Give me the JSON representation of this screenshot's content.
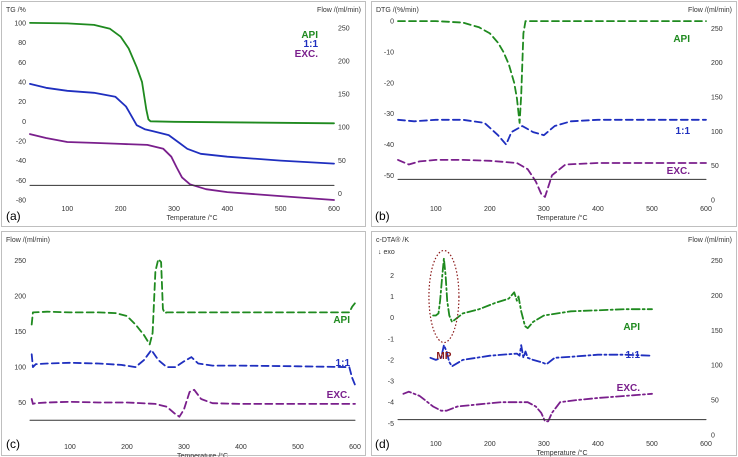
{
  "colors": {
    "api": "#1f8a1f",
    "mix": "#1f2fbf",
    "exc": "#7a1f8c",
    "base": "#333333",
    "annotation": "#8b1a1a",
    "frame": "#bfbfbf"
  },
  "chart_data": [
    {
      "panel": "(a)",
      "type": "line",
      "ylabel": "TG /%",
      "y2label": "Flow /(ml/min)",
      "xlabel": "Temperature /°C",
      "xlim": [
        30,
        600
      ],
      "ylim": [
        -80,
        105
      ],
      "y2lim": [
        -10,
        265
      ],
      "xticks": [
        100,
        200,
        300,
        400,
        500,
        600
      ],
      "yticks": [
        100,
        80,
        60,
        40,
        20,
        0,
        -20,
        -40,
        -60,
        -80
      ],
      "y2ticks": [
        250,
        200,
        150,
        100,
        50,
        0
      ],
      "legend": [
        "API",
        "1:1",
        "EXC."
      ],
      "series": [
        {
          "name": "API",
          "style": "solid",
          "x": [
            30,
            100,
            150,
            180,
            200,
            215,
            230,
            240,
            248,
            252,
            256,
            300,
            400,
            600
          ],
          "y": [
            100,
            99.5,
            98,
            94,
            86,
            74,
            55,
            40,
            12,
            2,
            0,
            -0.5,
            -1,
            -2
          ]
        },
        {
          "name": "1:1",
          "style": "solid",
          "x": [
            30,
            60,
            100,
            150,
            190,
            210,
            230,
            245,
            260,
            290,
            310,
            325,
            350,
            400,
            500,
            600
          ],
          "y": [
            38,
            34,
            31,
            29,
            25,
            15,
            -4,
            -8,
            -10,
            -14,
            -22,
            -28,
            -33,
            -36,
            -40,
            -43
          ]
        },
        {
          "name": "EXC.",
          "style": "solid",
          "x": [
            30,
            60,
            100,
            150,
            200,
            250,
            280,
            295,
            305,
            315,
            330,
            360,
            400,
            500,
            600
          ],
          "y": [
            -13,
            -17,
            -21,
            -22,
            -23,
            -24,
            -28,
            -36,
            -47,
            -57,
            -64,
            -69,
            -72,
            -76,
            -80
          ]
        },
        {
          "name": "",
          "style": "baseline",
          "axis": "y2",
          "x": [
            30,
            600
          ],
          "y": [
            12,
            12
          ]
        }
      ]
    },
    {
      "panel": "(b)",
      "type": "line",
      "ylabel": "DTG /(%/min)",
      "y2label": "Flow /(ml/min)",
      "xlabel": "Temperature /°C",
      "xlim": [
        30,
        600
      ],
      "ylim": [
        -58,
        1
      ],
      "y2lim": [
        0,
        265
      ],
      "xticks": [
        100,
        200,
        300,
        400,
        500,
        600
      ],
      "yticks": [
        0,
        -10,
        -20,
        -30,
        -40,
        -50
      ],
      "y2ticks": [
        250,
        200,
        150,
        100,
        50,
        0
      ],
      "legend": [
        "API",
        "1:1",
        "EXC."
      ],
      "series": [
        {
          "name": "API",
          "style": "dashed",
          "x": [
            30,
            100,
            150,
            180,
            200,
            215,
            225,
            235,
            240,
            245,
            250,
            255,
            258,
            262,
            266,
            300,
            400,
            600
          ],
          "y": [
            0,
            0,
            -0.5,
            -2,
            -4,
            -7,
            -10,
            -14,
            -17,
            -20,
            -25,
            -33,
            -24,
            -4,
            0,
            0,
            0,
            0
          ]
        },
        {
          "name": "1:1",
          "style": "dashed",
          "x": [
            30,
            60,
            100,
            150,
            190,
            215,
            230,
            240,
            260,
            280,
            300,
            320,
            350,
            400,
            500,
            600
          ],
          "y": [
            -32,
            -32.5,
            -32,
            -32,
            -33,
            -37,
            -40,
            -36,
            -34,
            -36,
            -37,
            -34,
            -32.5,
            -32,
            -32,
            -32
          ]
        },
        {
          "name": "EXC.",
          "style": "dashed",
          "x": [
            30,
            50,
            70,
            100,
            150,
            200,
            250,
            270,
            285,
            295,
            302,
            315,
            340,
            400,
            500,
            600
          ],
          "y": [
            -45,
            -46.5,
            -45.5,
            -45,
            -45,
            -45.3,
            -46,
            -48,
            -52,
            -56,
            -57,
            -50,
            -46.5,
            -46,
            -46,
            -46
          ]
        },
        {
          "name": "",
          "style": "baseline",
          "axis": "y2",
          "x": [
            30,
            600
          ],
          "y": [
            30,
            30
          ]
        }
      ]
    },
    {
      "panel": "(c)",
      "type": "line",
      "ylabel": "Flow /(ml/min)",
      "y2label": "",
      "xlabel": "Temperature /°C",
      "xlim": [
        30,
        600
      ],
      "ylim": [
        0,
        265
      ],
      "xticks": [
        100,
        200,
        300,
        400,
        500,
        600
      ],
      "yticks": [
        250,
        200,
        150,
        100,
        50
      ],
      "legend": [
        "API",
        "1:1",
        "EXC."
      ],
      "series": [
        {
          "name": "API",
          "style": "dashed",
          "x": [
            33,
            35,
            60,
            100,
            150,
            180,
            200,
            215,
            230,
            240,
            245,
            250,
            255,
            260,
            263,
            266,
            270,
            300,
            400,
            500,
            590,
            595,
            600
          ],
          "y": [
            160,
            177,
            178,
            177,
            177,
            176,
            172,
            160,
            145,
            132,
            148,
            235,
            252,
            248,
            182,
            176,
            177,
            177,
            177,
            177,
            177,
            185,
            190
          ]
        },
        {
          "name": "1:1",
          "style": "dashed",
          "x": [
            33,
            35,
            40,
            60,
            100,
            150,
            190,
            215,
            230,
            243,
            255,
            270,
            285,
            300,
            313,
            325,
            350,
            400,
            500,
            590,
            595,
            600
          ],
          "y": [
            118,
            100,
            104,
            105,
            106,
            105,
            103,
            100,
            110,
            124,
            110,
            100,
            100,
            108,
            114,
            105,
            102,
            102,
            101,
            100,
            85,
            75
          ]
        },
        {
          "name": "EXC.",
          "style": "dashed",
          "x": [
            33,
            35,
            40,
            60,
            100,
            150,
            200,
            250,
            270,
            283,
            292,
            300,
            310,
            318,
            330,
            350,
            400,
            500,
            600
          ],
          "y": [
            55,
            48,
            49,
            50,
            51,
            50,
            50,
            48,
            44,
            35,
            30,
            40,
            65,
            68,
            55,
            49,
            48,
            48,
            48
          ]
        },
        {
          "name": "",
          "style": "baseline",
          "x": [
            30,
            600
          ],
          "y": [
            25,
            25
          ]
        }
      ]
    },
    {
      "panel": "(d)",
      "type": "line",
      "ylabel": "c-DTA® /K",
      "y2label": "Flow /(ml/min)",
      "xlabel": "Temperature /°C",
      "ylabel_note": "↓ exo",
      "xlim": [
        30,
        600
      ],
      "ylim": [
        -5.55,
        3.2
      ],
      "y2lim": [
        0,
        265
      ],
      "xticks": [
        100,
        200,
        300,
        400,
        500,
        600
      ],
      "yticks": [
        2,
        1,
        0,
        -1,
        -2,
        -3,
        -4,
        -5
      ],
      "y2ticks": [
        250,
        200,
        150,
        100,
        50,
        0
      ],
      "legend": [
        "API",
        "1:1",
        "EXC."
      ],
      "annotation": "MP",
      "series": [
        {
          "name": "API",
          "style": "dashdot",
          "x": [
            95,
            100,
            105,
            108,
            112,
            115,
            118,
            121,
            125,
            130,
            135,
            150,
            180,
            210,
            235,
            245,
            250,
            253,
            258,
            265,
            270,
            280,
            300,
            350,
            400,
            450,
            500
          ],
          "y": [
            0.1,
            0.1,
            0.2,
            0.8,
            2.0,
            2.8,
            2.0,
            0.8,
            0.1,
            -0.2,
            -0.1,
            0.2,
            0.4,
            0.7,
            0.9,
            1.2,
            0.8,
            1.0,
            0.3,
            -0.4,
            -0.5,
            -0.2,
            0.1,
            0.3,
            0.35,
            0.4,
            0.4
          ]
        },
        {
          "name": "1:1",
          "style": "dashdot",
          "x": [
            90,
            100,
            110,
            115,
            120,
            125,
            130,
            150,
            200,
            250,
            255,
            258,
            262,
            266,
            270,
            280,
            295,
            305,
            320,
            350,
            400,
            450,
            500
          ],
          "y": [
            -1.9,
            -2.0,
            -1.9,
            -1.3,
            -1.6,
            -2.1,
            -2.3,
            -2.0,
            -1.8,
            -1.7,
            -1.8,
            -1.3,
            -1.9,
            -1.6,
            -1.9,
            -2.0,
            -2.1,
            -2.2,
            -1.9,
            -1.85,
            -1.75,
            -1.75,
            -1.8
          ]
        },
        {
          "name": "EXC.",
          "style": "dashdot",
          "x": [
            40,
            50,
            60,
            70,
            80,
            95,
            110,
            120,
            140,
            180,
            220,
            250,
            270,
            285,
            295,
            302,
            308,
            315,
            330,
            360,
            400,
            450,
            500
          ],
          "y": [
            -3.6,
            -3.5,
            -3.6,
            -3.7,
            -3.9,
            -4.2,
            -4.4,
            -4.4,
            -4.2,
            -4.1,
            -4.0,
            -4.0,
            -4.0,
            -4.2,
            -4.5,
            -4.9,
            -4.9,
            -4.5,
            -4.0,
            -3.9,
            -3.8,
            -3.7,
            -3.6
          ]
        },
        {
          "name": "",
          "style": "baseline",
          "axis": "y2",
          "x": [
            30,
            600
          ],
          "y": [
            22,
            22
          ]
        }
      ]
    }
  ]
}
